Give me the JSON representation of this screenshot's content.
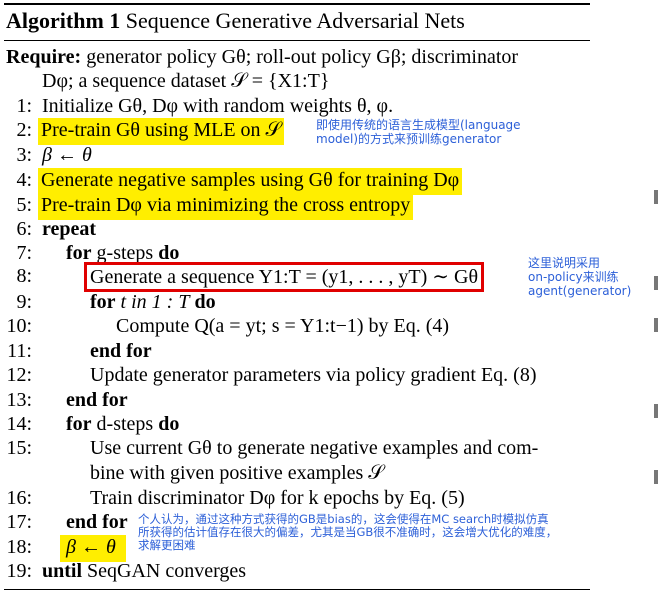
{
  "algorithm": {
    "label": "Algorithm 1",
    "title": "Sequence Generative Adversarial Nets",
    "require_label": "Require:",
    "require_text": "generator policy Gθ; roll-out policy Gβ; discriminator",
    "require_text2": "Dφ; a sequence dataset 𝒮 = {X1:T}",
    "lines": [
      {
        "n": "1:",
        "text": "Initialize Gθ, Dφ with random weights θ, φ."
      },
      {
        "n": "2:",
        "text": "Pre-train Gθ using MLE on 𝒮"
      },
      {
        "n": "3:",
        "text": "β ← θ"
      },
      {
        "n": "4:",
        "text": "Generate negative samples using Gθ for training Dφ"
      },
      {
        "n": "5:",
        "text": "Pre-train Dφ via minimizing the cross entropy"
      },
      {
        "n": "6:",
        "kw": "repeat"
      },
      {
        "n": "7:",
        "kw": "for",
        "text": "g-steps",
        "kw2": "do"
      },
      {
        "n": "8:",
        "text": "Generate a sequence Y1:T = (y1, . . . , yT) ∼ Gθ"
      },
      {
        "n": "9:",
        "kw": "for",
        "text": "t in 1 : T",
        "kw2": "do"
      },
      {
        "n": "10:",
        "text": "Compute Q(a = yt; s = Y1:t−1) by Eq. (4)"
      },
      {
        "n": "11:",
        "kw": "end for"
      },
      {
        "n": "12:",
        "text": "Update generator parameters via policy gradient Eq. (8)"
      },
      {
        "n": "13:",
        "kw": "end for"
      },
      {
        "n": "14:",
        "kw": "for",
        "text": "d-steps",
        "kw2": "do"
      },
      {
        "n": "15:",
        "text": "Use current Gθ to generate negative examples and com-"
      },
      {
        "n": "",
        "text": "bine with given positive examples 𝒮"
      },
      {
        "n": "16:",
        "text": "Train discriminator Dφ for k epochs by Eq. (5)"
      },
      {
        "n": "17:",
        "kw": "end for"
      },
      {
        "n": "18:",
        "text": "β ← θ"
      },
      {
        "n": "19:",
        "kw": "until",
        "text": "SeqGAN converges"
      }
    ]
  },
  "annotations": {
    "note_line2_a": "即使用传统的语言生成模型(language",
    "note_line2_b": "model)的方式来预训练generator",
    "note_line8_a": "这里说明采用",
    "note_line8_b": "on-policy来训练",
    "note_line8_c": "agent(generator)",
    "note_line17_a": "个人认为，通过这种方式获得的GB是bias的，这会使得在MC search时模拟仿真",
    "note_line17_b": "所获得的估计值存在很大的偏差，尤其是当GB很不准确时，这会增大优化的难度，",
    "note_line17_c": "求解更困难"
  },
  "colors": {
    "highlight": "#ffee00",
    "box_border": "#e00000",
    "note_text": "#2d60d8"
  }
}
